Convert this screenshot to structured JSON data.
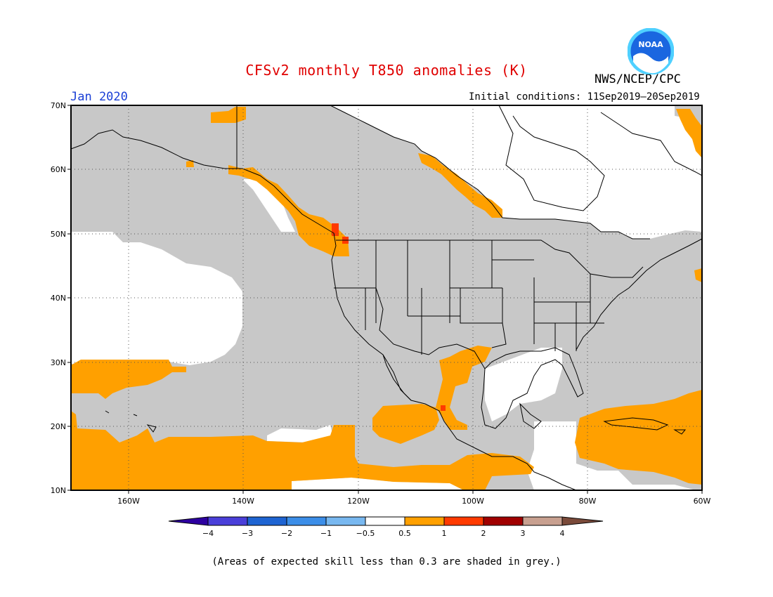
{
  "title": "CFSv2 monthly T850 anomalies (K)",
  "organization": "NWS/NCEP/CPC",
  "logo_text": "NOAA",
  "valid_month": "Jan 2020",
  "initial_conditions": "Initial conditions: 11Sep2019—20Sep2019",
  "footnote": "(Areas of expected skill less than 0.3 are shaded in grey.)",
  "map": {
    "lat_range": [
      10,
      70
    ],
    "lon_range": [
      -170,
      -60
    ],
    "lat_labels": [
      "10N",
      "20N",
      "30N",
      "40N",
      "50N",
      "60N",
      "70N"
    ],
    "lon_labels": [
      "160W",
      "140W",
      "120W",
      "100W",
      "80W",
      "60W"
    ],
    "shading_legend": {
      "low_skill": "#c8c8c8",
      "positive_anomaly_0.5_1": "#ffa000",
      "positive_anomaly_1_2": "#ff3a00"
    }
  },
  "colorbar": {
    "labels": [
      "−4",
      "−3",
      "−2",
      "−1",
      "−0.5",
      "0.5",
      "1",
      "2",
      "3",
      "4"
    ],
    "colors": [
      "#2d00a0",
      "#4a3fd9",
      "#1e64d2",
      "#3c8ee8",
      "#78b8f0",
      "#ffffff",
      "#ffa000",
      "#ff3a00",
      "#a00000",
      "#c8a090",
      "#7a4a3a"
    ]
  }
}
